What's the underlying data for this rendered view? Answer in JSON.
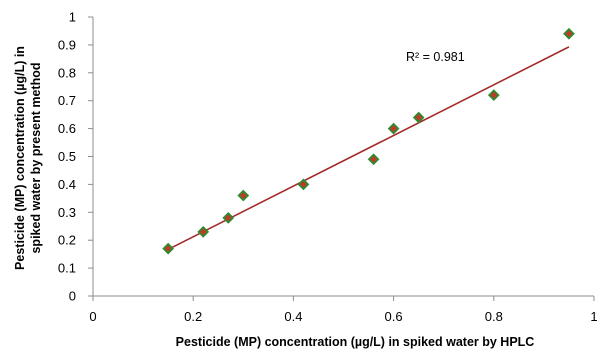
{
  "chart_data": {
    "type": "scatter",
    "title": "",
    "xlabel": "Pesticide (MP) concentration (µg/L) in spiked water by HPLC",
    "ylabel_lines": [
      "Pesticide (MP)  concentration (µg/L) in",
      "spiked water by present method"
    ],
    "xlim": [
      0,
      1
    ],
    "ylim": [
      0,
      1
    ],
    "x_ticks": [
      0,
      0.2,
      0.4,
      0.6,
      0.8,
      1
    ],
    "x_tick_labels": [
      "0",
      "0.2",
      "0.4",
      "0.6",
      "0.8",
      "1"
    ],
    "y_ticks": [
      0,
      0.1,
      0.2,
      0.3,
      0.4,
      0.5,
      0.6,
      0.7,
      0.8,
      0.9,
      1
    ],
    "y_tick_labels": [
      "0",
      "0.1",
      "0.2",
      "0.3",
      "0.4",
      "0.5",
      "0.6",
      "0.7",
      "0.8",
      "0.9",
      "1"
    ],
    "grid": false,
    "legend": "none",
    "points": [
      {
        "x": 0.15,
        "y": 0.17
      },
      {
        "x": 0.22,
        "y": 0.23
      },
      {
        "x": 0.27,
        "y": 0.28
      },
      {
        "x": 0.3,
        "y": 0.36
      },
      {
        "x": 0.42,
        "y": 0.4
      },
      {
        "x": 0.56,
        "y": 0.49
      },
      {
        "x": 0.6,
        "y": 0.6
      },
      {
        "x": 0.65,
        "y": 0.64
      },
      {
        "x": 0.8,
        "y": 0.72
      },
      {
        "x": 0.95,
        "y": 0.94
      }
    ],
    "trendline": {
      "type": "linear",
      "x_range": [
        0.15,
        0.95
      ],
      "y_range": [
        0.167,
        0.893
      ]
    },
    "annotation": "R² = 0.981",
    "colors": {
      "marker_fill": "#c0392b",
      "marker_stroke": "#2e8b2e",
      "trendline": "#a52a2a",
      "axis": "#8c8c8c"
    }
  }
}
